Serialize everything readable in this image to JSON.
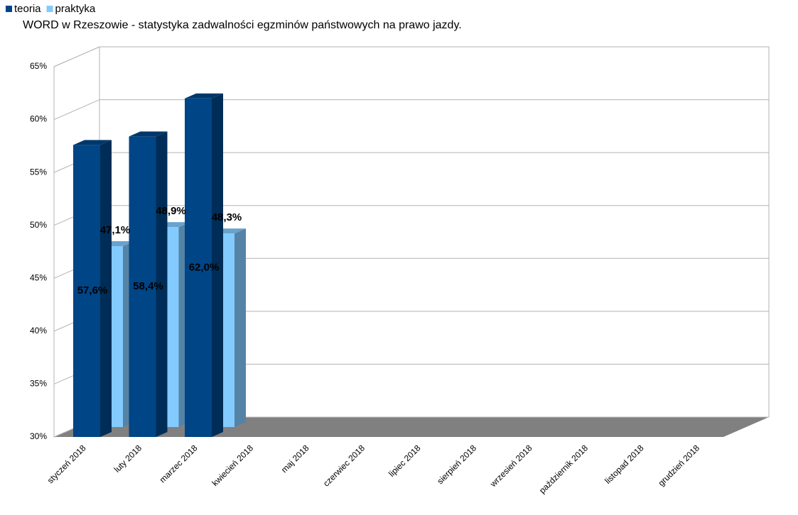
{
  "chart_data": {
    "type": "bar3d",
    "title": "WORD w Rzeszowie - statystyka zadwalności egzminów państwowych na prawo jazdy.",
    "categories": [
      "styczeń 2018",
      "luty 2018",
      "marzec 2018",
      "kwiecień 2018",
      "maj 2018",
      "czerwiec 2018",
      "lipiec 2018",
      "sierpień 2018",
      "wrzesień 2018",
      "październik 2018",
      "listopad 2018",
      "grudzień 2018"
    ],
    "series": [
      {
        "name": "teoria",
        "color": "#004586",
        "values": [
          57.6,
          58.4,
          62.0,
          null,
          null,
          null,
          null,
          null,
          null,
          null,
          null,
          null
        ],
        "value_labels": [
          "57,6%",
          "58,4%",
          "62,0%",
          null,
          null,
          null,
          null,
          null,
          null,
          null,
          null,
          null
        ],
        "label_color": "#ffff38"
      },
      {
        "name": "praktyka",
        "color": "#83caff",
        "values": [
          47.1,
          48.9,
          48.3,
          null,
          null,
          null,
          null,
          null,
          null,
          null,
          null,
          null
        ],
        "value_labels": [
          "47,1%",
          "48,9%",
          "48,3%",
          null,
          null,
          null,
          null,
          null,
          null,
          null,
          null,
          null
        ],
        "label_color": "#ff420e"
      }
    ],
    "ylim": [
      30,
      65
    ],
    "yticks": [
      {
        "value": 30,
        "label": "30%"
      },
      {
        "value": 35,
        "label": "35%"
      },
      {
        "value": 40,
        "label": "40%"
      },
      {
        "value": 45,
        "label": "45%"
      },
      {
        "value": 50,
        "label": "50%"
      },
      {
        "value": 55,
        "label": "55%"
      },
      {
        "value": 60,
        "label": "60%"
      },
      {
        "value": 65,
        "label": "65%"
      }
    ],
    "grid": true
  }
}
